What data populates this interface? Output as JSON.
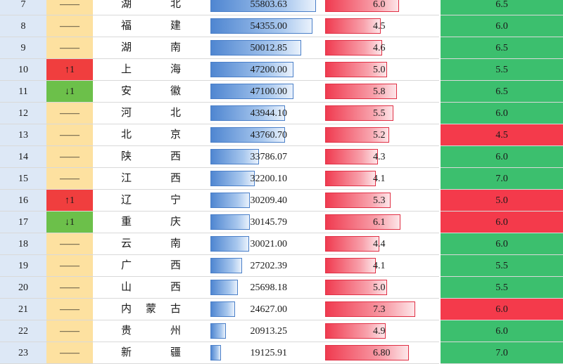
{
  "table": {
    "gdp_max": 58000,
    "growth_max": 9.0,
    "rows": [
      {
        "rank": "7",
        "change": "——",
        "change_type": "none",
        "name": [
          "湖",
          "北"
        ],
        "gdp": 55803.63,
        "gdp_label": "55803.63",
        "growth": 6.0,
        "growth_label": "6.0",
        "target": "6.5",
        "target_status": "green"
      },
      {
        "rank": "8",
        "change": "——",
        "change_type": "none",
        "name": [
          "福",
          "建"
        ],
        "gdp": 54355.0,
        "gdp_label": "54355.00",
        "growth": 4.5,
        "growth_label": "4.5",
        "target": "6.0",
        "target_status": "green"
      },
      {
        "rank": "9",
        "change": "——",
        "change_type": "none",
        "name": [
          "湖",
          "南"
        ],
        "gdp": 50012.85,
        "gdp_label": "50012.85",
        "growth": 4.6,
        "growth_label": "4.6",
        "target": "6.5",
        "target_status": "green"
      },
      {
        "rank": "10",
        "change": "↑1",
        "change_type": "up",
        "name": [
          "上",
          "海"
        ],
        "gdp": 47200.0,
        "gdp_label": "47200.00",
        "growth": 5.0,
        "growth_label": "5.0",
        "target": "5.5",
        "target_status": "green"
      },
      {
        "rank": "11",
        "change": "↓1",
        "change_type": "down",
        "name": [
          "安",
          "徽"
        ],
        "gdp": 47100.0,
        "gdp_label": "47100.00",
        "growth": 5.8,
        "growth_label": "5.8",
        "target": "6.5",
        "target_status": "green"
      },
      {
        "rank": "12",
        "change": "——",
        "change_type": "none",
        "name": [
          "河",
          "北"
        ],
        "gdp": 43944.1,
        "gdp_label": "43944.10",
        "growth": 5.5,
        "growth_label": "5.5",
        "target": "6.0",
        "target_status": "green"
      },
      {
        "rank": "13",
        "change": "——",
        "change_type": "none",
        "name": [
          "北",
          "京"
        ],
        "gdp": 43760.7,
        "gdp_label": "43760.70",
        "growth": 5.2,
        "growth_label": "5.2",
        "target": "4.5",
        "target_status": "red"
      },
      {
        "rank": "14",
        "change": "——",
        "change_type": "none",
        "name": [
          "陕",
          "西"
        ],
        "gdp": 33786.07,
        "gdp_label": "33786.07",
        "growth": 4.3,
        "growth_label": "4.3",
        "target": "6.0",
        "target_status": "green"
      },
      {
        "rank": "15",
        "change": "——",
        "change_type": "none",
        "name": [
          "江",
          "西"
        ],
        "gdp": 32200.1,
        "gdp_label": "32200.10",
        "growth": 4.1,
        "growth_label": "4.1",
        "target": "7.0",
        "target_status": "green"
      },
      {
        "rank": "16",
        "change": "↑1",
        "change_type": "up",
        "name": [
          "辽",
          "宁"
        ],
        "gdp": 30209.4,
        "gdp_label": "30209.40",
        "growth": 5.3,
        "growth_label": "5.3",
        "target": "5.0",
        "target_status": "red"
      },
      {
        "rank": "17",
        "change": "↓1",
        "change_type": "down",
        "name": [
          "重",
          "庆"
        ],
        "gdp": 30145.79,
        "gdp_label": "30145.79",
        "growth": 6.1,
        "growth_label": "6.1",
        "target": "6.0",
        "target_status": "red"
      },
      {
        "rank": "18",
        "change": "——",
        "change_type": "none",
        "name": [
          "云",
          "南"
        ],
        "gdp": 30021.0,
        "gdp_label": "30021.00",
        "growth": 4.4,
        "growth_label": "4.4",
        "target": "6.0",
        "target_status": "green"
      },
      {
        "rank": "19",
        "change": "——",
        "change_type": "none",
        "name": [
          "广",
          "西"
        ],
        "gdp": 27202.39,
        "gdp_label": "27202.39",
        "growth": 4.1,
        "growth_label": "4.1",
        "target": "5.5",
        "target_status": "green"
      },
      {
        "rank": "20",
        "change": "——",
        "change_type": "none",
        "name": [
          "山",
          "西"
        ],
        "gdp": 25698.18,
        "gdp_label": "25698.18",
        "growth": 5.0,
        "growth_label": "5.0",
        "target": "5.5",
        "target_status": "green"
      },
      {
        "rank": "21",
        "change": "——",
        "change_type": "none",
        "name": [
          "内",
          "蒙",
          "古"
        ],
        "gdp": 24627.0,
        "gdp_label": "24627.00",
        "growth": 7.3,
        "growth_label": "7.3",
        "target": "6.0",
        "target_status": "red"
      },
      {
        "rank": "22",
        "change": "——",
        "change_type": "none",
        "name": [
          "贵",
          "州"
        ],
        "gdp": 20913.25,
        "gdp_label": "20913.25",
        "growth": 4.9,
        "growth_label": "4.9",
        "target": "6.0",
        "target_status": "green"
      },
      {
        "rank": "23",
        "change": "——",
        "change_type": "none",
        "name": [
          "新",
          "疆"
        ],
        "gdp": 19125.91,
        "gdp_label": "19125.91",
        "growth": 6.8,
        "growth_label": "6.80",
        "target": "7.0",
        "target_status": "green"
      }
    ]
  },
  "colors": {
    "rank_bg": "#dde8f6",
    "change_bg": "#fde1a0",
    "change_up": "#f03e3e",
    "change_down": "#6cc04a",
    "gdp_bar": "#4f86d1",
    "growth_bar": "#f03b50",
    "target_green": "#3cbf6e",
    "target_red": "#f43a4b"
  }
}
